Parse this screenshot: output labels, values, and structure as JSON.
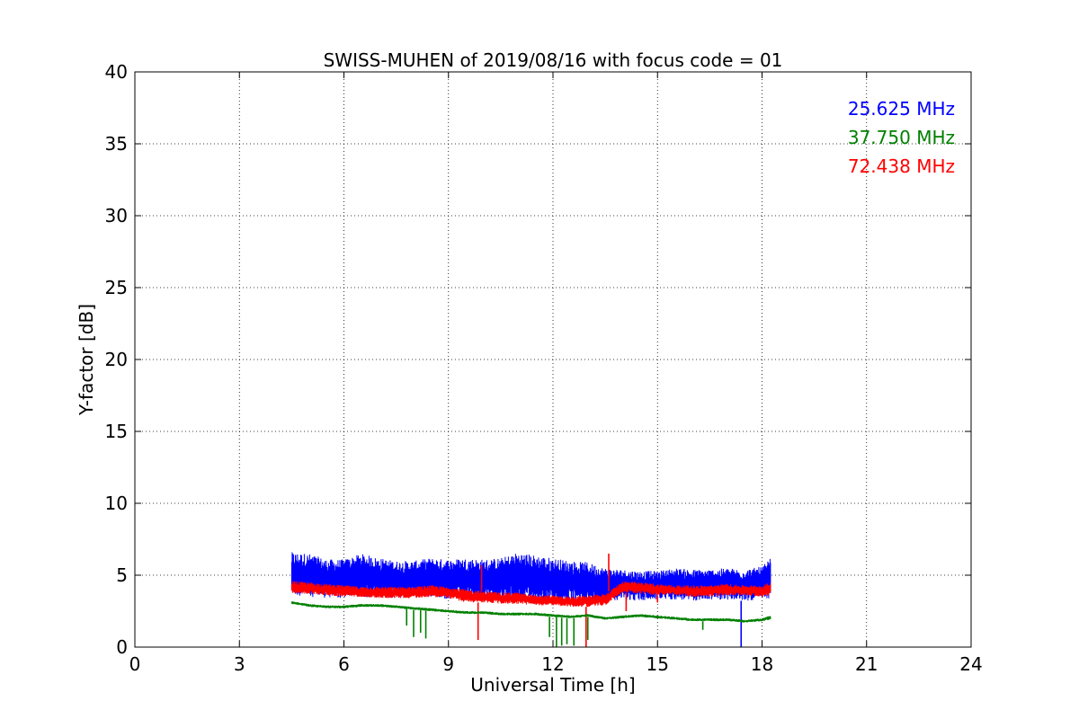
{
  "chart_data": {
    "type": "line",
    "title": "SWISS-MUHEN of 2019/08/16 with focus code = 01",
    "xlabel": "Universal Time [h]",
    "ylabel": "Y-factor [dB]",
    "xlim": [
      0,
      24
    ],
    "ylim": [
      0,
      40
    ],
    "xticks": [
      0,
      3,
      6,
      9,
      12,
      15,
      18,
      21,
      24
    ],
    "yticks": [
      0,
      5,
      10,
      15,
      20,
      25,
      30,
      35,
      40
    ],
    "grid": true,
    "legend_position": "top-right",
    "series": [
      {
        "name": "25.625 MHz",
        "color": "#0000ff",
        "x": [
          4.5,
          5.0,
          5.5,
          6.0,
          6.5,
          7.0,
          7.5,
          8.0,
          8.5,
          9.0,
          9.5,
          10.0,
          10.5,
          11.0,
          11.5,
          12.0,
          12.5,
          13.0,
          13.5,
          14.0,
          14.5,
          15.0,
          15.5,
          16.0,
          16.5,
          17.0,
          17.5,
          18.0,
          18.25
        ],
        "low": [
          3.6,
          3.5,
          3.4,
          3.4,
          3.5,
          3.4,
          3.4,
          3.5,
          3.5,
          3.3,
          3.3,
          3.2,
          3.2,
          3.2,
          3.1,
          3.0,
          3.1,
          3.0,
          3.2,
          3.3,
          3.2,
          3.3,
          3.3,
          3.2,
          3.3,
          3.3,
          3.2,
          3.3,
          3.4
        ],
        "high": [
          6.6,
          6.5,
          6.1,
          6.1,
          6.5,
          6.2,
          6.0,
          6.0,
          6.2,
          6.1,
          6.2,
          6.1,
          6.2,
          6.6,
          6.4,
          6.2,
          6.0,
          5.9,
          5.5,
          5.4,
          5.3,
          5.3,
          5.5,
          5.4,
          5.4,
          5.5,
          5.4,
          5.6,
          6.2
        ],
        "spikes": [
          [
            17.4,
            0
          ]
        ]
      },
      {
        "name": "37.750 MHz",
        "color": "#008000",
        "x": [
          4.5,
          5.0,
          5.5,
          6.0,
          6.5,
          7.0,
          7.5,
          8.0,
          8.5,
          9.0,
          9.5,
          10.0,
          10.5,
          11.0,
          11.5,
          12.0,
          12.5,
          13.0,
          13.5,
          14.0,
          14.5,
          15.0,
          15.5,
          16.0,
          16.5,
          17.0,
          17.5,
          18.0,
          18.25
        ],
        "low": [
          3.0,
          2.8,
          2.7,
          2.7,
          2.8,
          2.8,
          2.7,
          2.6,
          2.5,
          2.4,
          2.3,
          2.3,
          2.2,
          2.2,
          2.2,
          2.1,
          2.0,
          2.1,
          1.9,
          2.0,
          2.1,
          2.0,
          1.9,
          1.8,
          1.8,
          1.8,
          1.7,
          1.8,
          1.9
        ],
        "high": [
          3.2,
          3.0,
          2.9,
          2.9,
          3.0,
          3.0,
          2.9,
          2.8,
          2.7,
          2.6,
          2.5,
          2.5,
          2.4,
          2.4,
          2.4,
          2.3,
          2.2,
          2.3,
          2.1,
          2.2,
          2.3,
          2.2,
          2.1,
          2.0,
          2.0,
          2.0,
          1.9,
          2.0,
          2.2
        ],
        "spikes": [
          [
            7.8,
            1.5
          ],
          [
            8.0,
            0.7
          ],
          [
            8.2,
            1.0
          ],
          [
            8.35,
            0.6
          ],
          [
            11.9,
            0.7
          ],
          [
            12.1,
            0.0
          ],
          [
            12.25,
            0.1
          ],
          [
            12.4,
            0.2
          ],
          [
            12.6,
            0.1
          ],
          [
            13.0,
            0.5
          ],
          [
            16.3,
            1.2
          ]
        ]
      },
      {
        "name": "72.438 MHz",
        "color": "#ff0000",
        "x": [
          4.5,
          5.0,
          5.5,
          6.0,
          6.5,
          7.0,
          7.5,
          8.0,
          8.5,
          9.0,
          9.5,
          10.0,
          10.5,
          11.0,
          11.5,
          12.0,
          12.5,
          13.0,
          13.5,
          14.0,
          14.5,
          15.0,
          15.5,
          16.0,
          16.5,
          17.0,
          17.5,
          18.0,
          18.25
        ],
        "low": [
          3.7,
          3.7,
          3.6,
          3.5,
          3.5,
          3.4,
          3.4,
          3.4,
          3.5,
          3.4,
          3.1,
          3.1,
          3.0,
          3.0,
          2.9,
          2.9,
          2.8,
          2.8,
          2.9,
          3.8,
          3.7,
          3.6,
          3.6,
          3.5,
          3.5,
          3.6,
          3.6,
          3.5,
          3.6
        ],
        "high": [
          4.6,
          4.5,
          4.4,
          4.3,
          4.2,
          4.2,
          4.2,
          4.2,
          4.3,
          4.2,
          4.0,
          3.9,
          3.8,
          3.8,
          3.6,
          3.6,
          3.5,
          3.6,
          3.7,
          4.6,
          4.5,
          4.4,
          4.3,
          4.3,
          4.3,
          4.4,
          4.3,
          4.3,
          4.5
        ],
        "spikes": [
          [
            9.85,
            0.5
          ],
          [
            9.95,
            5.7
          ],
          [
            12.95,
            0.0
          ],
          [
            13.6,
            6.5
          ],
          [
            14.1,
            2.5
          ],
          [
            15.0,
            3.1
          ]
        ]
      }
    ]
  }
}
